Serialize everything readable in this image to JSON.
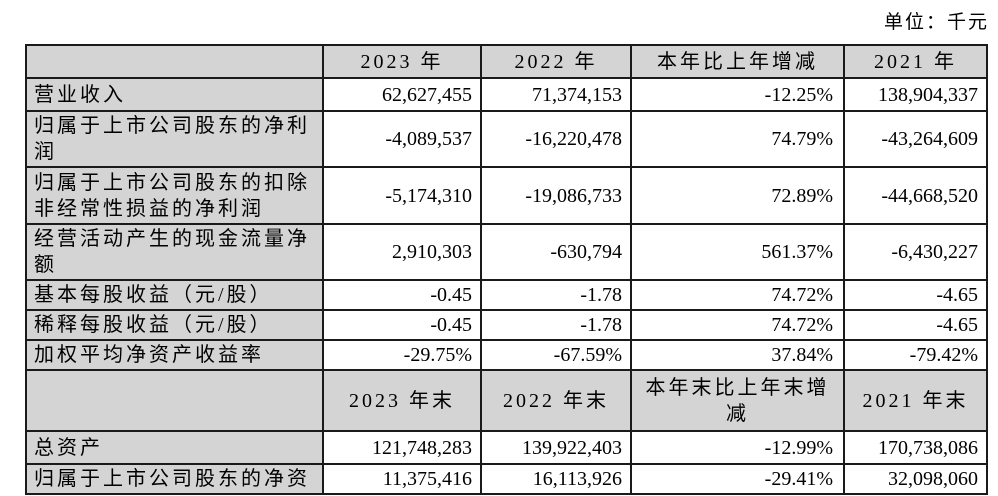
{
  "unit_label": "单位：千元",
  "colors": {
    "page_bg": "#ffffff",
    "header_bg": "#d4d4d4",
    "border": "#1a1a1a",
    "text": "#000000"
  },
  "table": {
    "header1": [
      "",
      "2023 年",
      "2022 年",
      "本年比上年增减",
      "2021 年"
    ],
    "rows1": [
      {
        "label": "营业收入",
        "values": [
          "62,627,455",
          "71,374,153",
          "-12.25%",
          "138,904,337"
        ]
      },
      {
        "label": "归属于上市公司股东的净利润",
        "values": [
          "-4,089,537",
          "-16,220,478",
          "74.79%",
          "-43,264,609"
        ]
      },
      {
        "label": "归属于上市公司股东的扣除非经常性损益的净利润",
        "values": [
          "-5,174,310",
          "-19,086,733",
          "72.89%",
          "-44,668,520"
        ]
      },
      {
        "label": "经营活动产生的现金流量净额",
        "values": [
          "2,910,303",
          "-630,794",
          "561.37%",
          "-6,430,227"
        ]
      },
      {
        "label": "基本每股收益（元/股）",
        "values": [
          "-0.45",
          "-1.78",
          "74.72%",
          "-4.65"
        ]
      },
      {
        "label": "稀释每股收益（元/股）",
        "values": [
          "-0.45",
          "-1.78",
          "74.72%",
          "-4.65"
        ]
      },
      {
        "label": "加权平均净资产收益率",
        "values": [
          "-29.75%",
          "-67.59%",
          "37.84%",
          "-79.42%"
        ]
      }
    ],
    "header2": [
      "",
      "2023 年末",
      "2022 年末",
      "本年末比上年末增减",
      "2021 年末"
    ],
    "rows2": [
      {
        "label": "总资产",
        "values": [
          "121,748,283",
          "139,922,403",
          "-12.99%",
          "170,738,086"
        ]
      },
      {
        "label": "归属于上市公司股东的净资",
        "values": [
          "11,375,416",
          "16,113,926",
          "-29.41%",
          "32,098,060"
        ]
      }
    ]
  }
}
